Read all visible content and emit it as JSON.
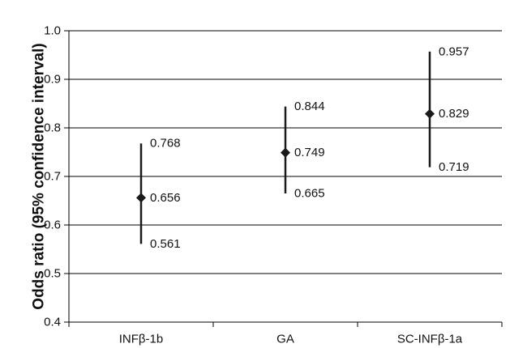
{
  "chart_data": {
    "type": "scatter",
    "ylabel": "Odds ratio (95% confidence interval)",
    "xlabel": "",
    "ylim": [
      0.4,
      1.0
    ],
    "yticks": [
      "0.4",
      "0.5",
      "0.6",
      "0.7",
      "0.8",
      "0.9",
      "1.0"
    ],
    "grid": true,
    "categories": [
      "INFβ-1b",
      "GA",
      "SC-INFβ-1a"
    ],
    "series": [
      {
        "points": [
          {
            "category": "INFβ-1b",
            "estimate": 0.656,
            "lower": 0.561,
            "upper": 0.768
          },
          {
            "category": "GA",
            "estimate": 0.749,
            "lower": 0.665,
            "upper": 0.844
          },
          {
            "category": "SC-INFβ-1a",
            "estimate": 0.829,
            "lower": 0.719,
            "upper": 0.957
          }
        ]
      }
    ],
    "value_labels": [
      {
        "upper": "0.768",
        "estimate": "0.656",
        "lower": "0.561"
      },
      {
        "upper": "0.844",
        "estimate": "0.749",
        "lower": "0.665"
      },
      {
        "upper": "0.957",
        "estimate": "0.829",
        "lower": "0.719"
      }
    ],
    "colors": {
      "marker": "#1a1a1a",
      "grid": "#000000",
      "text": "#111111"
    }
  }
}
